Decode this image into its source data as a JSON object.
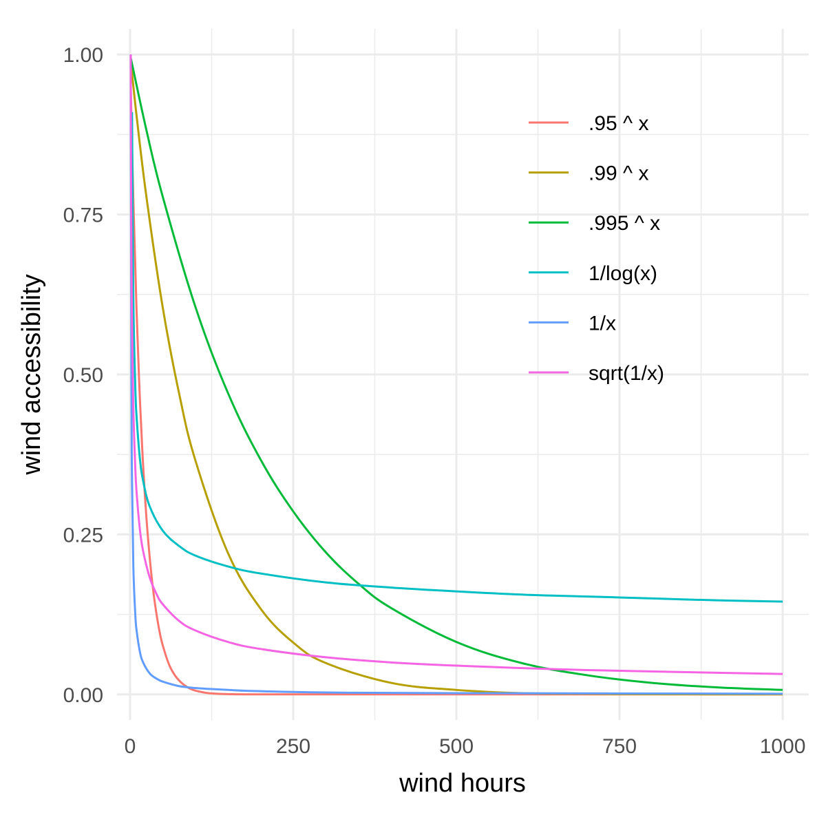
{
  "chart_data": {
    "type": "line",
    "xlabel": "wind hours",
    "ylabel": "wind accessibility",
    "xlim": [
      -20,
      1040
    ],
    "ylim": [
      -0.04,
      1.04
    ],
    "x_ticks": [
      0,
      250,
      500,
      750,
      1000
    ],
    "x_tick_labels": [
      "0",
      "250",
      "500",
      "750",
      "1000"
    ],
    "y_ticks": [
      0,
      0.25,
      0.5,
      0.75,
      1
    ],
    "y_tick_labels": [
      "0.00",
      "0.25",
      "0.50",
      "0.75",
      "1.00"
    ],
    "grid": true,
    "legend_position": "top-right (inside plot)",
    "series": [
      {
        "name": ".95 ^ x",
        "color": "#F8766D",
        "x": [
          1,
          5,
          10,
          15,
          20,
          25,
          30,
          35,
          40,
          45,
          50,
          60,
          70,
          80,
          90,
          100,
          120,
          150,
          200,
          400,
          1000
        ],
        "y": [
          0.95,
          0.774,
          0.599,
          0.463,
          0.358,
          0.277,
          0.215,
          0.166,
          0.129,
          0.099,
          0.077,
          0.046,
          0.028,
          0.017,
          0.01,
          0.006,
          0.002,
          0.0005,
          0.0,
          0.0,
          0.0
        ]
      },
      {
        "name": ".99 ^ x",
        "color": "#B79F00",
        "x": [
          1,
          10,
          25,
          50,
          75,
          100,
          150,
          200,
          250,
          300,
          400,
          500,
          600,
          700,
          800,
          1000
        ],
        "y": [
          0.99,
          0.904,
          0.778,
          0.605,
          0.471,
          0.366,
          0.221,
          0.134,
          0.081,
          0.049,
          0.018,
          0.007,
          0.002,
          0.001,
          0.0003,
          0.0
        ]
      },
      {
        "name": ".995 ^ x",
        "color": "#00BA38",
        "x": [
          1,
          25,
          50,
          100,
          150,
          200,
          250,
          300,
          350,
          400,
          500,
          600,
          700,
          800,
          900,
          1000
        ],
        "y": [
          0.995,
          0.882,
          0.778,
          0.606,
          0.471,
          0.367,
          0.286,
          0.222,
          0.173,
          0.135,
          0.082,
          0.049,
          0.03,
          0.018,
          0.011,
          0.007
        ]
      },
      {
        "name": "1/log(x)",
        "color": "#00BFC4",
        "x": [
          3,
          5,
          8,
          10,
          15,
          20,
          30,
          50,
          75,
          100,
          150,
          200,
          300,
          400,
          500,
          600,
          700,
          800,
          900,
          1000
        ],
        "y": [
          0.91,
          0.621,
          0.481,
          0.434,
          0.369,
          0.334,
          0.294,
          0.256,
          0.232,
          0.217,
          0.2,
          0.189,
          0.175,
          0.167,
          0.161,
          0.156,
          0.153,
          0.15,
          0.147,
          0.145
        ]
      },
      {
        "name": "1/x",
        "color": "#619CFF",
        "x": [
          1,
          2,
          3,
          5,
          8,
          10,
          15,
          20,
          30,
          40,
          50,
          75,
          100,
          150,
          200,
          300,
          500,
          1000
        ],
        "y": [
          1,
          0.5,
          0.333,
          0.2,
          0.125,
          0.1,
          0.067,
          0.05,
          0.033,
          0.025,
          0.02,
          0.013,
          0.01,
          0.007,
          0.005,
          0.003,
          0.002,
          0.001
        ]
      },
      {
        "name": "sqrt(1/x)",
        "color": "#F564E3",
        "x": [
          1,
          2,
          3,
          5,
          8,
          10,
          15,
          20,
          30,
          40,
          50,
          75,
          100,
          150,
          200,
          300,
          400,
          500,
          700,
          1000
        ],
        "y": [
          1,
          0.707,
          0.577,
          0.447,
          0.354,
          0.316,
          0.258,
          0.224,
          0.183,
          0.158,
          0.141,
          0.115,
          0.1,
          0.082,
          0.071,
          0.058,
          0.05,
          0.045,
          0.038,
          0.032
        ]
      }
    ]
  }
}
